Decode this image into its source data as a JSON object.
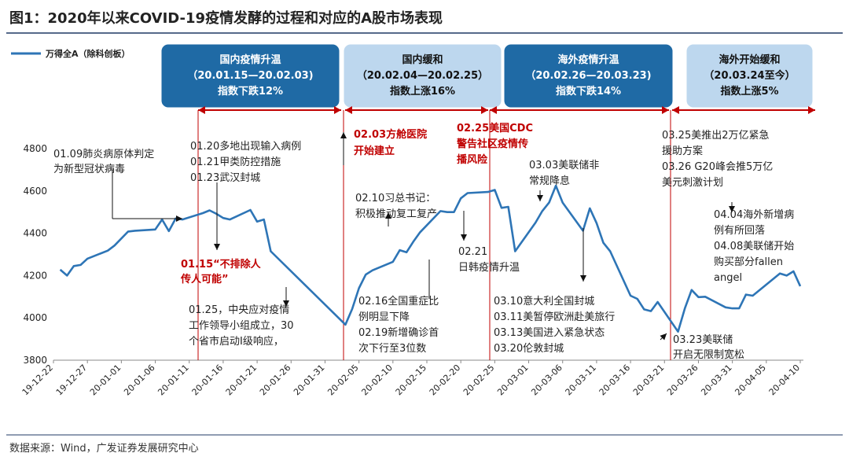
{
  "title": "图1：2020年以来COVID-19疫情发酵的过程和对应的A股市场表现",
  "source": "数据来源：Wind，广发证券发展研究中心",
  "colors": {
    "series": "#2e75b6",
    "dark_box": "#1f6aa5",
    "light_box": "#bdd7ee",
    "red": "#c00000",
    "text": "#222222",
    "rule": "#1f3864"
  },
  "phases": [
    {
      "lines": [
        "国内疫情升温",
        "（20.01.15—20.02.03)",
        "指数下跌12%"
      ],
      "style": "dark"
    },
    {
      "lines": [
        "国内缓和",
        "（20.02.04—20.02.25）",
        "指数上涨16%"
      ],
      "style": "light"
    },
    {
      "lines": [
        "海外疫情升温",
        "（20.02.26—20.03.23)",
        "指数下跌14%"
      ],
      "style": "dark"
    },
    {
      "lines": [
        "海外开始缓和",
        "（20.03.24至今）",
        "指数上涨5%"
      ],
      "style": "light"
    }
  ],
  "annotations": [
    {
      "lines": [
        "01.09肺炎病原体判定",
        "为新型冠状病毒"
      ],
      "color": "dark"
    },
    {
      "lines": [
        "01.20多地出现输入病例",
        "01.21甲类防控措施",
        "01.23武汉封城"
      ],
      "color": "dark"
    },
    {
      "lines": [
        "01.15“不排除人",
        "传人可能”"
      ],
      "color": "red"
    },
    {
      "lines": [
        "01.25，中央应对疫情",
        "工作领导小组成立，30",
        "个省市启动I级响应，"
      ],
      "color": "dark"
    },
    {
      "lines": [
        "02.03方舱医院",
        "开始建立"
      ],
      "color": "red"
    },
    {
      "lines": [
        "02.10习总书记：",
        "积极推动复工复产"
      ],
      "color": "dark"
    },
    {
      "lines": [
        "02.16全国重症比",
        "例明显下降",
        "02.19新增确诊首",
        "次下行至3位数"
      ],
      "color": "dark"
    },
    {
      "lines": [
        "02.25美国CDC",
        "警告社区疫情传",
        "播风险"
      ],
      "color": "red"
    },
    {
      "lines": [
        "02.21",
        "日韩疫情升温"
      ],
      "color": "dark"
    },
    {
      "lines": [
        "03.03美联储非",
        "常规降息"
      ],
      "color": "dark"
    },
    {
      "lines": [
        "03.10意大利全国封城",
        "03.11美暂停欧洲赴美旅行",
        "03.13美国进入紧急状态",
        "03.20伦敦封城"
      ],
      "color": "dark"
    },
    {
      "lines": [
        "03.25美推出2万亿紧急",
        "援助方案",
        "03.26 G20峰会推5万亿",
        "美元刺激计划"
      ],
      "color": "dark"
    },
    {
      "lines": [
        "04.04海外新增病",
        "例有所回落",
        "04.08美联储开始",
        "购买部分fallen",
        "angel"
      ],
      "color": "dark"
    },
    {
      "lines": [
        "03.23美联储",
        "开启无限制宽松"
      ],
      "color": "dark"
    }
  ],
  "chart_data": {
    "type": "line",
    "series": [
      {
        "name": "万得全A（除科创板）",
        "x": [
          "19-12-23",
          "19-12-24",
          "19-12-25",
          "19-12-26",
          "19-12-27",
          "19-12-30",
          "19-12-31",
          "20-01-02",
          "20-01-03",
          "20-01-06",
          "20-01-07",
          "20-01-08",
          "20-01-09",
          "20-01-10",
          "20-01-13",
          "20-01-14",
          "20-01-15",
          "20-01-16",
          "20-01-17",
          "20-01-20",
          "20-01-21",
          "20-01-22",
          "20-01-23",
          "20-02-03",
          "20-02-04",
          "20-02-05",
          "20-02-06",
          "20-02-07",
          "20-02-10",
          "20-02-11",
          "20-02-12",
          "20-02-13",
          "20-02-14",
          "20-02-17",
          "20-02-18",
          "20-02-19",
          "20-02-20",
          "20-02-21",
          "20-02-24",
          "20-02-25",
          "20-02-26",
          "20-02-27",
          "20-02-28",
          "20-03-02",
          "20-03-03",
          "20-03-04",
          "20-03-05",
          "20-03-06",
          "20-03-09",
          "20-03-10",
          "20-03-11",
          "20-03-12",
          "20-03-13",
          "20-03-16",
          "20-03-17",
          "20-03-18",
          "20-03-19",
          "20-03-20",
          "20-03-23",
          "20-03-24",
          "20-03-25",
          "20-03-26",
          "20-03-27",
          "20-03-30",
          "20-03-31",
          "20-04-01",
          "20-04-02",
          "20-04-03",
          "20-04-07",
          "20-04-08",
          "20-04-09",
          "20-04-10"
        ],
        "values": [
          4228,
          4200,
          4245,
          4250,
          4280,
          4318,
          4342,
          4408,
          4412,
          4418,
          4465,
          4410,
          4470,
          4465,
          4495,
          4508,
          4492,
          4472,
          4465,
          4510,
          4455,
          4465,
          4315,
          3968,
          4042,
          4140,
          4205,
          4225,
          4265,
          4320,
          4310,
          4360,
          4405,
          4505,
          4500,
          4500,
          4565,
          4590,
          4595,
          4605,
          4520,
          4525,
          4315,
          4450,
          4505,
          4545,
          4625,
          4545,
          4412,
          4518,
          4448,
          4355,
          4315,
          4105,
          4090,
          4040,
          4032,
          4075,
          3935,
          4045,
          4132,
          4098,
          4100,
          4050,
          4045,
          4045,
          4110,
          4105,
          4210,
          4200,
          4220,
          4150
        ]
      }
    ],
    "ylim": [
      3800,
      4800
    ],
    "yticks": [
      3800,
      4000,
      4200,
      4400,
      4600,
      4800
    ],
    "xtick_labels": [
      "19-12-22",
      "19-12-27",
      "20-01-01",
      "20-01-06",
      "20-01-11",
      "20-01-16",
      "20-01-21",
      "20-01-26",
      "20-01-31",
      "20-02-05",
      "20-02-10",
      "20-02-15",
      "20-02-20",
      "20-02-25",
      "20-03-01",
      "20-03-06",
      "20-03-11",
      "20-03-16",
      "20-03-21",
      "20-03-26",
      "20-03-31",
      "20-04-05",
      "20-04-10"
    ],
    "legend": "top-left",
    "grid": false
  }
}
